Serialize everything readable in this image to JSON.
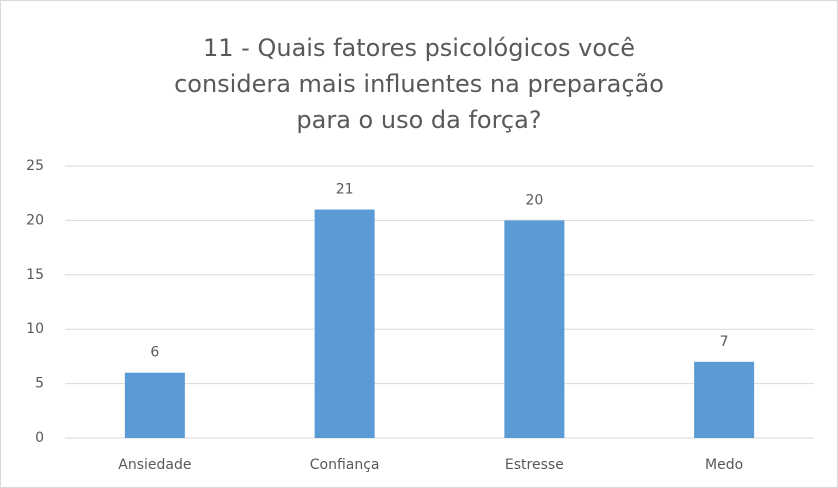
{
  "chart_data": {
    "type": "bar",
    "title": "11 - Quais fatores psicológicos você considera mais influentes na preparação para o uso da força?",
    "categories": [
      "Ansiedade",
      "Confiança",
      "Estresse",
      "Medo"
    ],
    "values": [
      6,
      21,
      20,
      7
    ],
    "color": "#5b9bd5",
    "ylim": [
      0,
      25
    ],
    "yticks": [
      0,
      5,
      10,
      15,
      20,
      25
    ],
    "grid": true,
    "data_labels": true
  }
}
